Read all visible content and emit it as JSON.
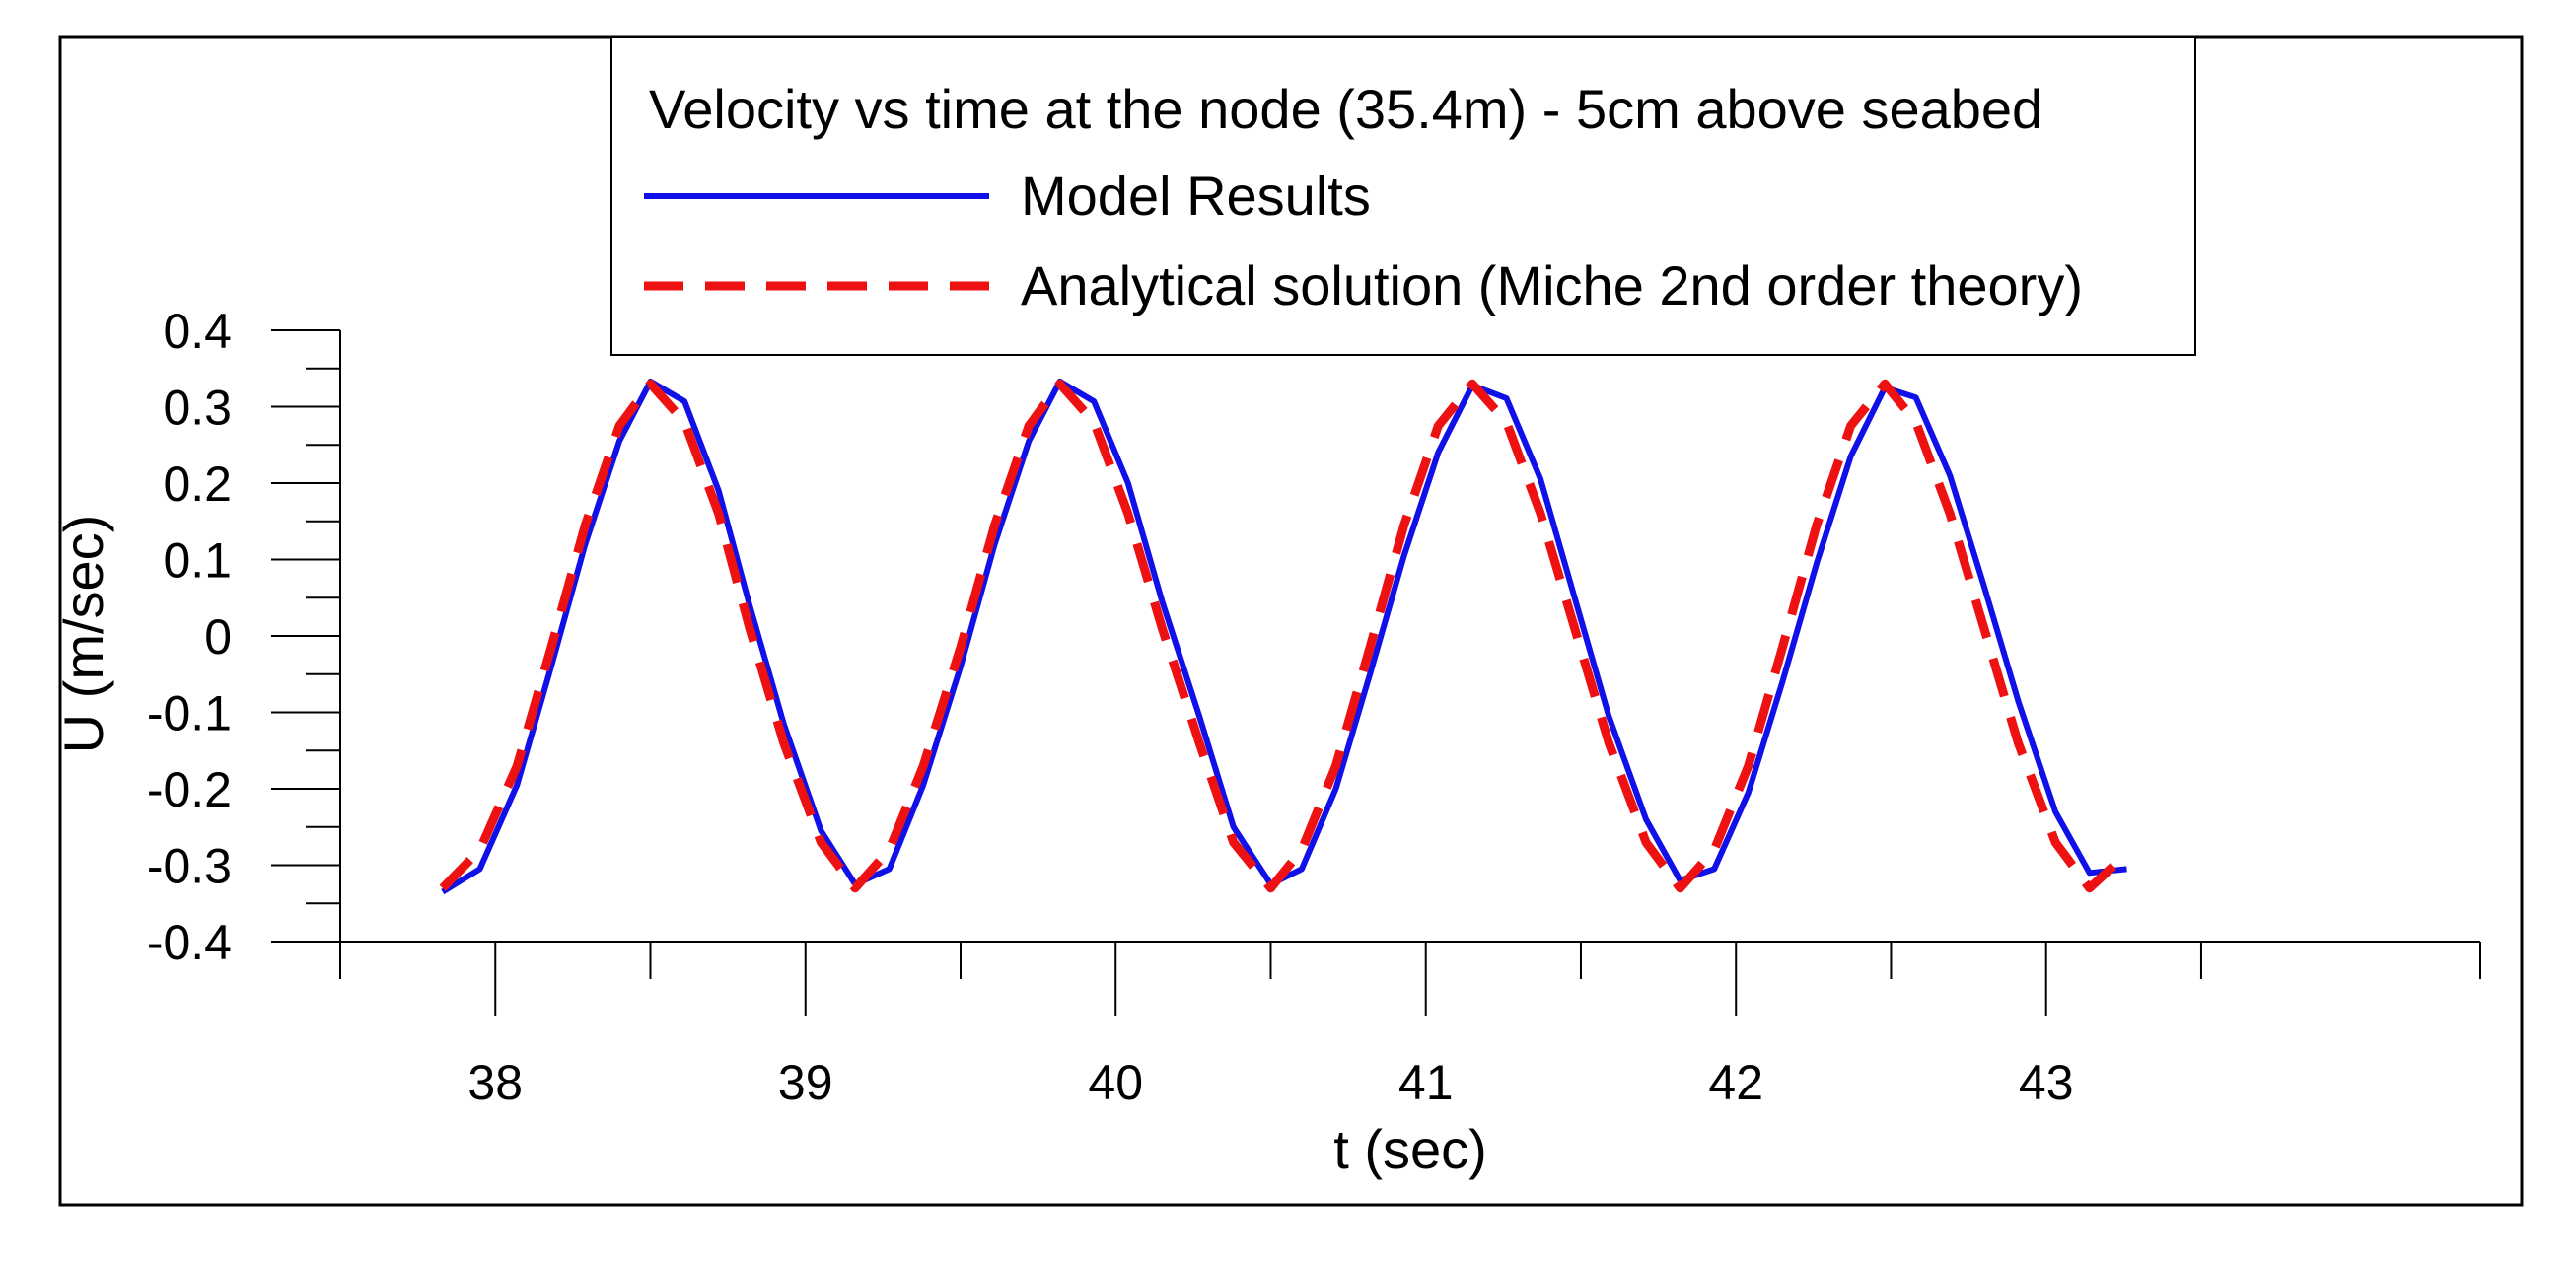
{
  "chart_data": {
    "type": "line",
    "title": "Velocity vs time at the node (35.4m) - 5cm above seabed",
    "xlabel": "t (sec)",
    "ylabel": "U (m/sec)",
    "xlim": [
      37.5,
      44.4
    ],
    "ylim": [
      -0.4,
      0.4
    ],
    "x_ticks": [
      38,
      39,
      40,
      41,
      42,
      43
    ],
    "x_tick_labels": [
      "38",
      "39",
      "40",
      "41",
      "42",
      "43"
    ],
    "y_ticks": [
      0.4,
      0.3,
      0.2,
      0.1,
      0,
      -0.1,
      -0.2,
      -0.3,
      -0.4
    ],
    "y_tick_labels": [
      "0.4",
      "0.3",
      "0.2",
      "0.1",
      "0",
      "-0.1",
      "-0.2",
      "-0.3",
      "-0.4"
    ],
    "legend_position": "top-center",
    "series": [
      {
        "name": "Model Results",
        "color": "#1010e8",
        "style": "solid",
        "points": [
          [
            37.83,
            -0.335
          ],
          [
            37.95,
            -0.305
          ],
          [
            38.07,
            -0.195
          ],
          [
            38.18,
            -0.04
          ],
          [
            38.29,
            0.12
          ],
          [
            38.4,
            0.255
          ],
          [
            38.5,
            0.333
          ],
          [
            38.61,
            0.307
          ],
          [
            38.72,
            0.19
          ],
          [
            38.82,
            0.04
          ],
          [
            38.93,
            -0.115
          ],
          [
            39.05,
            -0.255
          ],
          [
            39.16,
            -0.325
          ],
          [
            39.27,
            -0.305
          ],
          [
            39.38,
            -0.195
          ],
          [
            39.5,
            -0.04
          ],
          [
            39.61,
            0.12
          ],
          [
            39.72,
            0.255
          ],
          [
            39.82,
            0.333
          ],
          [
            39.93,
            0.307
          ],
          [
            40.04,
            0.2
          ],
          [
            40.15,
            0.045
          ],
          [
            40.27,
            -0.105
          ],
          [
            40.38,
            -0.25
          ],
          [
            40.5,
            -0.325
          ],
          [
            40.6,
            -0.305
          ],
          [
            40.71,
            -0.2
          ],
          [
            40.82,
            -0.05
          ],
          [
            40.93,
            0.105
          ],
          [
            41.04,
            0.24
          ],
          [
            41.15,
            0.328
          ],
          [
            41.26,
            0.311
          ],
          [
            41.37,
            0.205
          ],
          [
            41.48,
            0.05
          ],
          [
            41.59,
            -0.105
          ],
          [
            41.71,
            -0.24
          ],
          [
            41.82,
            -0.32
          ],
          [
            41.93,
            -0.305
          ],
          [
            42.04,
            -0.205
          ],
          [
            42.15,
            -0.06
          ],
          [
            42.26,
            0.095
          ],
          [
            42.37,
            0.235
          ],
          [
            42.48,
            0.325
          ],
          [
            42.58,
            0.312
          ],
          [
            42.69,
            0.21
          ],
          [
            42.8,
            0.065
          ],
          [
            42.91,
            -0.085
          ],
          [
            43.03,
            -0.23
          ],
          [
            43.14,
            -0.31
          ],
          [
            43.26,
            -0.305
          ]
        ]
      },
      {
        "name": "Analytical solution (Miche 2nd order theory)",
        "color": "#ee1111",
        "style": "dashed",
        "points": [
          [
            37.83,
            -0.33
          ],
          [
            37.95,
            -0.28
          ],
          [
            38.07,
            -0.17
          ],
          [
            38.18,
            -0.015
          ],
          [
            38.29,
            0.145
          ],
          [
            38.4,
            0.275
          ],
          [
            38.5,
            0.33
          ],
          [
            38.61,
            0.28
          ],
          [
            38.72,
            0.16
          ],
          [
            38.82,
            0.01
          ],
          [
            38.93,
            -0.14
          ],
          [
            39.05,
            -0.27
          ],
          [
            39.16,
            -0.33
          ],
          [
            39.27,
            -0.28
          ],
          [
            39.38,
            -0.17
          ],
          [
            39.5,
            -0.015
          ],
          [
            39.61,
            0.145
          ],
          [
            39.72,
            0.275
          ],
          [
            39.82,
            0.33
          ],
          [
            39.93,
            0.28
          ],
          [
            40.04,
            0.16
          ],
          [
            40.15,
            0.01
          ],
          [
            40.27,
            -0.14
          ],
          [
            40.38,
            -0.27
          ],
          [
            40.5,
            -0.33
          ],
          [
            40.6,
            -0.28
          ],
          [
            40.71,
            -0.17
          ],
          [
            40.82,
            -0.015
          ],
          [
            40.93,
            0.145
          ],
          [
            41.04,
            0.275
          ],
          [
            41.15,
            0.33
          ],
          [
            41.26,
            0.28
          ],
          [
            41.37,
            0.16
          ],
          [
            41.48,
            0.01
          ],
          [
            41.59,
            -0.14
          ],
          [
            41.71,
            -0.27
          ],
          [
            41.82,
            -0.33
          ],
          [
            41.93,
            -0.28
          ],
          [
            42.04,
            -0.17
          ],
          [
            42.15,
            -0.015
          ],
          [
            42.26,
            0.145
          ],
          [
            42.37,
            0.275
          ],
          [
            42.48,
            0.33
          ],
          [
            42.58,
            0.28
          ],
          [
            42.69,
            0.16
          ],
          [
            42.8,
            0.01
          ],
          [
            42.91,
            -0.14
          ],
          [
            43.03,
            -0.27
          ],
          [
            43.14,
            -0.33
          ],
          [
            43.26,
            -0.285
          ]
        ]
      }
    ]
  }
}
